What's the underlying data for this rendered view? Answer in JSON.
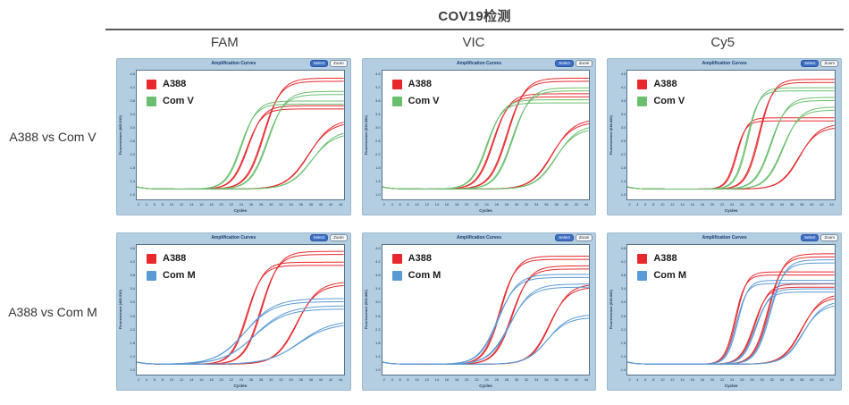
{
  "title": "COV19检测",
  "columns": [
    "FAM",
    "VIC",
    "Cy5"
  ],
  "rows": [
    "A388 vs Com V",
    "A388 vs Com M"
  ],
  "colors": {
    "A388": "#e8282c",
    "Com V": "#6abf6e",
    "Com M": "#5b9bd5",
    "panel_frame": "#b3cde1",
    "panel_title_text": "#1c3c6e",
    "select_button_bg": "#3f6fc4",
    "divider": "#5a5a5a"
  },
  "panel_chrome": {
    "title": "Amplification Curves",
    "buttons": [
      "Select",
      "Zoom"
    ],
    "xlabel": "Cycles",
    "x_ticks": [
      "2",
      "4",
      "6",
      "8",
      "10",
      "12",
      "14",
      "16",
      "18",
      "20",
      "22",
      "24",
      "26",
      "28",
      "30",
      "32",
      "34",
      "36",
      "38",
      "40",
      "42",
      "44"
    ],
    "y_tick_labels": [
      "4.6",
      "4.2",
      "3.8",
      "3.4",
      "3.0",
      "2.6",
      "2.2",
      "1.8",
      "1.4",
      "1.0"
    ]
  },
  "chart_data": [
    {
      "type": "line",
      "channel": "FAM",
      "comparison": "A388 vs Com V",
      "title": "Amplification Curves",
      "xlabel": "Cycles",
      "ylabel": "Fluorescence (465-510)",
      "x_range": [
        1,
        45
      ],
      "baseline": 0.05,
      "series": [
        {
          "name": "A388",
          "color": "#e8282c",
          "curves": [
            {
              "ct": 24.5,
              "slope": 0.62,
              "plateau": 0.73
            },
            {
              "ct": 28.0,
              "slope": 0.55,
              "plateau": 0.96
            },
            {
              "ct": 37.5,
              "slope": 0.42,
              "plateau": 0.62
            }
          ]
        },
        {
          "name": "Com V",
          "color": "#6abf6e",
          "curves": [
            {
              "ct": 23.2,
              "slope": 0.62,
              "plateau": 0.77
            },
            {
              "ct": 28.8,
              "slope": 0.55,
              "plateau": 0.85
            },
            {
              "ct": 38.2,
              "slope": 0.42,
              "plateau": 0.53
            }
          ]
        }
      ]
    },
    {
      "type": "line",
      "channel": "VIC",
      "comparison": "A388 vs Com V",
      "title": "Amplification Curves",
      "xlabel": "Cycles",
      "ylabel": "Fluorescence (533-580)",
      "x_range": [
        1,
        45
      ],
      "baseline": 0.05,
      "series": [
        {
          "name": "A388",
          "color": "#e8282c",
          "curves": [
            {
              "ct": 24.5,
              "slope": 0.6,
              "plateau": 0.83
            },
            {
              "ct": 27.5,
              "slope": 0.55,
              "plateau": 0.96
            },
            {
              "ct": 37.0,
              "slope": 0.45,
              "plateau": 0.62
            }
          ]
        },
        {
          "name": "Com V",
          "color": "#6abf6e",
          "curves": [
            {
              "ct": 23.2,
              "slope": 0.6,
              "plateau": 0.78
            },
            {
              "ct": 28.6,
              "slope": 0.55,
              "plateau": 0.88
            },
            {
              "ct": 37.8,
              "slope": 0.45,
              "plateau": 0.57
            }
          ]
        }
      ]
    },
    {
      "type": "line",
      "channel": "Cy5",
      "comparison": "A388 vs Com V",
      "title": "Amplification Curves",
      "xlabel": "Cycles",
      "ylabel": "Fluorescence (618-660)",
      "x_range": [
        1,
        45
      ],
      "baseline": 0.05,
      "series": [
        {
          "name": "A388",
          "color": "#e8282c",
          "curves": [
            {
              "ct": 24.2,
              "slope": 0.95,
              "plateau": 0.63
            },
            {
              "ct": 29.0,
              "slope": 0.7,
              "plateau": 0.95
            },
            {
              "ct": 37.5,
              "slope": 0.5,
              "plateau": 0.58
            }
          ]
        },
        {
          "name": "Com V",
          "color": "#6abf6e",
          "curves": [
            {
              "ct": 26.5,
              "slope": 0.8,
              "plateau": 0.88
            },
            {
              "ct": 31.5,
              "slope": 0.6,
              "plateau": 0.8
            },
            {
              "ct": 34.0,
              "slope": 0.55,
              "plateau": 0.72
            }
          ]
        }
      ]
    },
    {
      "type": "line",
      "channel": "FAM",
      "comparison": "A388 vs Com M",
      "title": "Amplification Curves",
      "xlabel": "Cycles",
      "ylabel": "Fluorescence (465-510)",
      "x_range": [
        1,
        45
      ],
      "baseline": 0.05,
      "series": [
        {
          "name": "A388",
          "color": "#e8282c",
          "curves": [
            {
              "ct": 24.5,
              "slope": 0.6,
              "plateau": 0.88
            },
            {
              "ct": 27.5,
              "slope": 0.55,
              "plateau": 0.97
            },
            {
              "ct": 35.0,
              "slope": 0.45,
              "plateau": 0.72
            }
          ]
        },
        {
          "name": "Com M",
          "color": "#5b9bd5",
          "curves": [
            {
              "ct": 24.0,
              "slope": 0.33,
              "plateau": 0.58
            },
            {
              "ct": 26.0,
              "slope": 0.3,
              "plateau": 0.52
            },
            {
              "ct": 35.5,
              "slope": 0.3,
              "plateau": 0.4
            }
          ]
        }
      ]
    },
    {
      "type": "line",
      "channel": "VIC",
      "comparison": "A388 vs Com M",
      "title": "Amplification Curves",
      "xlabel": "Cycles",
      "ylabel": "Fluorescence (533-580)",
      "x_range": [
        1,
        45
      ],
      "baseline": 0.05,
      "series": [
        {
          "name": "A388",
          "color": "#e8282c",
          "curves": [
            {
              "ct": 26.0,
              "slope": 0.6,
              "plateau": 0.93
            },
            {
              "ct": 28.5,
              "slope": 0.55,
              "plateau": 0.85
            },
            {
              "ct": 36.5,
              "slope": 0.5,
              "plateau": 0.7
            }
          ]
        },
        {
          "name": "Com M",
          "color": "#5b9bd5",
          "curves": [
            {
              "ct": 25.5,
              "slope": 0.5,
              "plateau": 0.78
            },
            {
              "ct": 28.0,
              "slope": 0.45,
              "plateau": 0.7
            },
            {
              "ct": 36.0,
              "slope": 0.45,
              "plateau": 0.45
            }
          ]
        }
      ]
    },
    {
      "type": "line",
      "channel": "Cy5",
      "comparison": "A388 vs Com M",
      "title": "Amplification Curves",
      "xlabel": "Cycles",
      "ylabel": "Fluorescence (618-660)",
      "x_range": [
        1,
        45
      ],
      "baseline": 0.05,
      "series": [
        {
          "name": "A388",
          "color": "#e8282c",
          "curves": [
            {
              "ct": 24.0,
              "slope": 0.9,
              "plateau": 0.8
            },
            {
              "ct": 28.0,
              "slope": 0.7,
              "plateau": 0.7
            },
            {
              "ct": 31.0,
              "slope": 0.65,
              "plateau": 0.95
            },
            {
              "ct": 38.0,
              "slope": 0.5,
              "plateau": 0.62
            }
          ]
        },
        {
          "name": "Com M",
          "color": "#5b9bd5",
          "curves": [
            {
              "ct": 24.3,
              "slope": 0.9,
              "plateau": 0.73
            },
            {
              "ct": 28.3,
              "slope": 0.7,
              "plateau": 0.66
            },
            {
              "ct": 31.3,
              "slope": 0.65,
              "plateau": 0.9
            },
            {
              "ct": 38.3,
              "slope": 0.5,
              "plateau": 0.56
            }
          ]
        }
      ]
    }
  ]
}
